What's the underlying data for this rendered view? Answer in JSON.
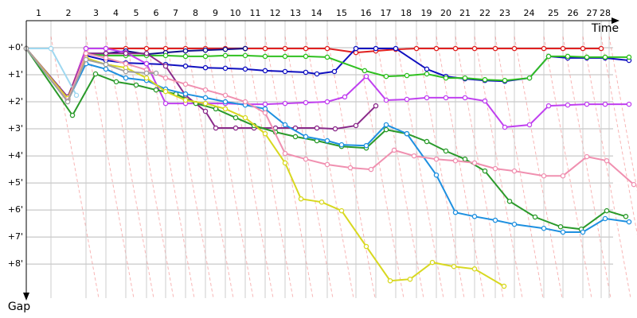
{
  "chart_data": {
    "type": "line",
    "x_label": "Time",
    "y_label": "Gap",
    "laps": [
      "1",
      "2",
      "3",
      "4",
      "5",
      "6",
      "7",
      "8",
      "9",
      "10",
      "11",
      "12",
      "13",
      "14",
      "15",
      "16",
      "17",
      "18",
      "19",
      "20",
      "21",
      "22",
      "23",
      "24",
      "25",
      "26",
      "27",
      "28"
    ],
    "lap_ends": [
      31,
      75,
      100,
      125,
      151,
      175,
      200,
      225,
      250,
      275,
      300,
      325,
      351,
      378,
      414,
      439,
      464,
      490,
      515,
      539,
      563,
      589,
      613,
      650,
      674,
      699,
      722,
      732
    ],
    "xlim": [
      0,
      767
    ],
    "ylim": [
      -1,
      9.26
    ],
    "yreversed": true,
    "yticks": [
      {
        "value": 0,
        "label": "+0'"
      },
      {
        "value": 1,
        "label": "+1'"
      },
      {
        "value": 2,
        "label": "+2'"
      },
      {
        "value": 3,
        "label": "+3'"
      },
      {
        "value": 4,
        "label": "+4'"
      },
      {
        "value": 5,
        "label": "+5'"
      },
      {
        "value": 6,
        "label": "+6'"
      },
      {
        "value": 7,
        "label": "+7'"
      },
      {
        "value": 8,
        "label": "+8'"
      }
    ],
    "grid": true,
    "series": [
      {
        "color": "#e02020",
        "x": [
          0,
          52,
          75,
          100,
          125,
          151,
          175,
          200,
          225,
          250,
          275,
          300,
          325,
          351,
          378,
          414,
          439,
          464,
          490,
          515,
          539,
          563,
          589,
          613,
          650,
          674,
          699,
          722
        ],
        "values": [
          0.03,
          1.88,
          0.03,
          0.03,
          0.03,
          0.03,
          0.03,
          0.03,
          0.03,
          0.03,
          0.03,
          0.03,
          0.03,
          0.03,
          0.03,
          0.18,
          0.12,
          0.06,
          0.03,
          0.03,
          0.03,
          0.03,
          0.03,
          0.03,
          0.03,
          0.03,
          0.03,
          0.03
        ]
      },
      {
        "color": "#10108a",
        "x": [
          0,
          52,
          75,
          100,
          125,
          151,
          175,
          200,
          225,
          250,
          275
        ],
        "values": [
          0.03,
          1.91,
          0.21,
          0.21,
          0.12,
          0.24,
          0.18,
          0.12,
          0.09,
          0.06,
          0.03
        ]
      },
      {
        "color": "#1010c0",
        "x": [
          0,
          52,
          75,
          100,
          125,
          151,
          175,
          200,
          225,
          250,
          275,
          300,
          325,
          351,
          365,
          387,
          414,
          439,
          464,
          503,
          527,
          551,
          576,
          601,
          632,
          656,
          680,
          704,
          727,
          757
        ],
        "values": [
          0.03,
          1.88,
          0.29,
          0.47,
          0.56,
          0.59,
          0.62,
          0.68,
          0.74,
          0.76,
          0.79,
          0.85,
          0.88,
          0.91,
          0.97,
          0.88,
          0.03,
          0.03,
          0.03,
          0.79,
          1.06,
          1.15,
          1.21,
          1.24,
          1.12,
          0.32,
          0.38,
          0.38,
          0.38,
          0.47
        ]
      },
      {
        "color": "#30c020",
        "x": [
          0,
          52,
          75,
          100,
          125,
          151,
          175,
          200,
          225,
          250,
          275,
          300,
          325,
          351,
          378,
          425,
          452,
          478,
          503,
          527,
          551,
          576,
          601,
          632,
          656,
          680,
          704,
          727,
          757
        ],
        "values": [
          0.03,
          1.91,
          0.21,
          0.29,
          0.29,
          0.29,
          0.29,
          0.32,
          0.32,
          0.29,
          0.29,
          0.32,
          0.32,
          0.32,
          0.35,
          0.85,
          1.06,
          1.03,
          0.97,
          1.12,
          1.12,
          1.18,
          1.21,
          1.12,
          0.32,
          0.32,
          0.35,
          0.35,
          0.35
        ]
      },
      {
        "color": "#c040f0",
        "x": [
          0,
          52,
          75,
          100,
          125,
          151,
          175,
          200,
          225,
          250,
          275,
          300,
          325,
          351,
          378,
          400,
          427,
          452,
          478,
          503,
          527,
          551,
          576,
          601,
          632,
          656,
          680,
          704,
          727,
          757
        ],
        "values": [
          0.03,
          1.91,
          0.03,
          0.03,
          0.18,
          0.59,
          2.06,
          2.06,
          2.06,
          2.06,
          2.09,
          2.09,
          2.06,
          2.03,
          2.0,
          1.82,
          1.06,
          1.94,
          1.91,
          1.85,
          1.85,
          1.85,
          1.97,
          2.94,
          2.85,
          2.15,
          2.12,
          2.09,
          2.09,
          2.09
        ]
      },
      {
        "color": "#8a2a8a",
        "x": [
          0,
          52,
          75,
          100,
          125,
          151,
          175,
          200,
          225,
          238,
          263,
          286,
          313,
          338,
          365,
          388,
          414,
          439
        ],
        "values": [
          0.03,
          1.82,
          0.21,
          0.21,
          0.21,
          0.21,
          0.68,
          1.76,
          2.35,
          2.97,
          2.97,
          2.97,
          2.97,
          2.97,
          2.97,
          3.0,
          2.88,
          2.15
        ]
      },
      {
        "color": "#2a9a2a",
        "x": [
          0,
          58,
          87,
          113,
          138,
          163,
          188,
          213,
          238,
          263,
          286,
          313,
          338,
          365,
          396,
          427,
          452,
          478,
          503,
          527,
          551,
          576,
          607,
          639,
          671,
          697,
          729,
          753
        ],
        "values": [
          0.03,
          2.5,
          0.97,
          1.26,
          1.38,
          1.56,
          1.71,
          2.06,
          2.26,
          2.59,
          2.88,
          3.12,
          3.29,
          3.44,
          3.65,
          3.71,
          3.03,
          3.18,
          3.47,
          3.82,
          4.12,
          4.56,
          5.68,
          6.26,
          6.62,
          6.71,
          6.03,
          6.24
        ]
      },
      {
        "color": "#1e90e0",
        "x": [
          0,
          52,
          75,
          100,
          125,
          151,
          175,
          200,
          225,
          250,
          275,
          300,
          325,
          351,
          378,
          396,
          427,
          452,
          478,
          515,
          539,
          563,
          589,
          613,
          650,
          674,
          699,
          727,
          757
        ],
        "values": [
          0.03,
          1.97,
          0.59,
          0.79,
          1.12,
          1.21,
          1.53,
          1.71,
          1.85,
          2.0,
          2.12,
          2.26,
          2.85,
          3.29,
          3.44,
          3.59,
          3.62,
          2.85,
          3.18,
          4.71,
          6.09,
          6.24,
          6.38,
          6.53,
          6.68,
          6.82,
          6.82,
          6.32,
          6.44
        ]
      },
      {
        "color": "#9fd8f0",
        "x": [
          0,
          31,
          63
        ],
        "values": [
          0.03,
          0.03,
          1.76
        ]
      },
      {
        "color": "#d8d820",
        "x": [
          0,
          52,
          75,
          100,
          125,
          151,
          175,
          200,
          225,
          250,
          275,
          300,
          325,
          345,
          371,
          396,
          427,
          457,
          482,
          510,
          537,
          563,
          600
        ],
        "values": [
          0.03,
          1.88,
          0.38,
          0.62,
          0.74,
          1.12,
          1.62,
          1.94,
          2.06,
          2.26,
          2.59,
          3.18,
          4.26,
          5.59,
          5.71,
          6.03,
          7.35,
          8.62,
          8.56,
          7.94,
          8.09,
          8.18,
          8.82
        ]
      },
      {
        "color": "#f090b0",
        "x": [
          0,
          52,
          75,
          100,
          125,
          151,
          175,
          200,
          225,
          250,
          275,
          300,
          325,
          351,
          378,
          407,
          433,
          462,
          487,
          515,
          539,
          563,
          589,
          613,
          650,
          674,
          704,
          729,
          763
        ],
        "values": [
          0.03,
          1.97,
          0.21,
          0.38,
          0.59,
          0.82,
          1.12,
          1.35,
          1.56,
          1.76,
          2.0,
          2.41,
          3.91,
          4.12,
          4.32,
          4.44,
          4.5,
          3.79,
          4.0,
          4.12,
          4.18,
          4.26,
          4.47,
          4.56,
          4.74,
          4.74,
          4.03,
          4.18,
          5.06
        ]
      },
      {
        "color": "#a0a0a0",
        "x": [
          0,
          52,
          75,
          100,
          125,
          151,
          163
        ],
        "values": [
          0.03,
          2.0,
          0.44,
          0.62,
          0.88,
          0.94,
          0.94
        ]
      }
    ]
  }
}
